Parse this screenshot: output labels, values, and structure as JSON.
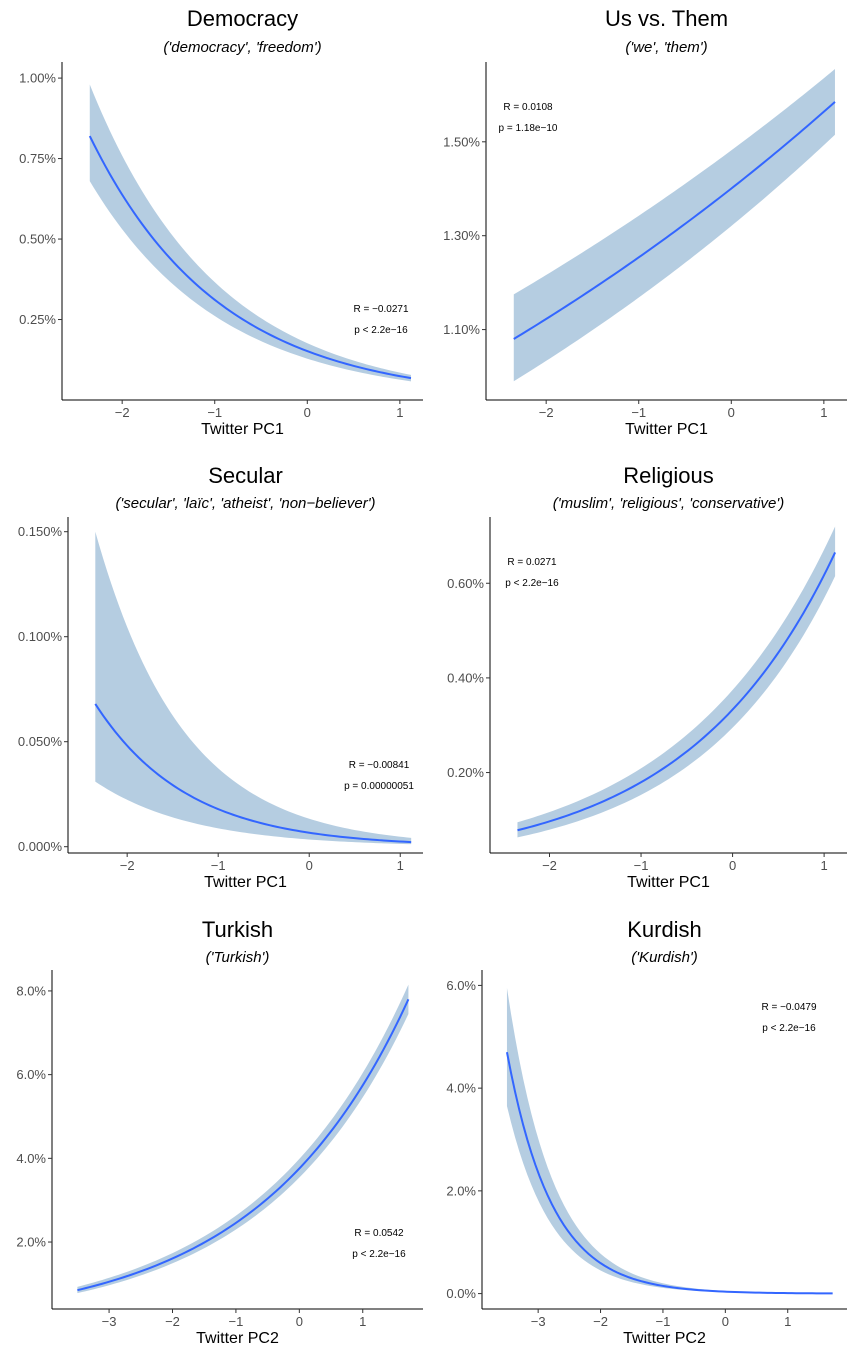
{
  "colors": {
    "line": "#3366ff",
    "ribbon": "#b5cde1",
    "axis": "#000000",
    "tick_text": "#4d4d4d"
  },
  "chart_data": [
    {
      "type": "line",
      "title": "Democracy",
      "subtitle": "('democracy', 'freedom')",
      "xlabel": "Twitter PC1",
      "ylabel": "",
      "xlim": [
        -2.65,
        1.25
      ],
      "ylim": [
        0.0,
        1.05
      ],
      "x_ticks": [
        -2,
        -1,
        0,
        1
      ],
      "x_tick_labels": [
        "−2",
        "−1",
        "0",
        "1"
      ],
      "y_ticks": [
        0.25,
        0.5,
        0.75,
        1.0
      ],
      "y_tick_labels": [
        "0.25%",
        "0.50%",
        "0.75%",
        "1.00%"
      ],
      "curve": {
        "form": "exp",
        "x_range": [
          -2.35,
          1.12
        ],
        "y_start": 0.82,
        "y_end": 0.068,
        "lo_start": 0.68,
        "lo_end": 0.058,
        "hi_start": 0.98,
        "hi_end": 0.078
      },
      "annotation": {
        "r": "R = −0.0271",
        "p": "p < 2.2e−16",
        "position": "right-middle"
      },
      "grid": false
    },
    {
      "type": "line",
      "title": "Us vs. Them",
      "subtitle": "('we', 'them')",
      "xlabel": "Twitter PC1",
      "ylabel": "",
      "xlim": [
        -2.65,
        1.25
      ],
      "ylim": [
        0.95,
        1.67
      ],
      "x_ticks": [
        -2,
        -1,
        0,
        1
      ],
      "x_tick_labels": [
        "−2",
        "−1",
        "0",
        "1"
      ],
      "y_ticks": [
        1.1,
        1.3,
        1.5
      ],
      "y_tick_labels": [
        "1.10%",
        "1.30%",
        "1.50%"
      ],
      "curve": {
        "form": "exp",
        "x_range": [
          -2.35,
          1.12
        ],
        "y_start": 1.08,
        "y_end": 1.585,
        "lo_start": 0.99,
        "lo_end": 1.515,
        "hi_start": 1.175,
        "hi_end": 1.655
      },
      "annotation": {
        "r": "R = 0.0108",
        "p": "p = 1.18e−10",
        "position": "top-left"
      },
      "grid": false
    },
    {
      "type": "line",
      "title": "Secular",
      "subtitle": "('secular', 'laïc', 'atheist', 'non−believer')",
      "xlabel": "Twitter PC1",
      "ylabel": "",
      "xlim": [
        -2.65,
        1.25
      ],
      "ylim": [
        -0.003,
        0.157
      ],
      "x_ticks": [
        -2,
        -1,
        0,
        1
      ],
      "x_tick_labels": [
        "−2",
        "−1",
        "0",
        "1"
      ],
      "y_ticks": [
        0.0,
        0.05,
        0.1,
        0.15
      ],
      "y_tick_labels": [
        "0.000%",
        "0.050%",
        "0.100%",
        "0.150%"
      ],
      "curve": {
        "form": "exp",
        "x_range": [
          -2.35,
          1.12
        ],
        "y_start": 0.068,
        "y_end": 0.0022,
        "lo_start": 0.031,
        "lo_end": 0.0012,
        "hi_start": 0.15,
        "hi_end": 0.0042
      },
      "annotation": {
        "r": "R = −0.00841",
        "p": "p = 0.00000051",
        "position": "right-middle"
      },
      "grid": false
    },
    {
      "type": "line",
      "title": "Religious",
      "subtitle": "('muslim', 'religious', 'conservative')",
      "xlabel": "Twitter PC1",
      "ylabel": "",
      "xlim": [
        -2.65,
        1.25
      ],
      "ylim": [
        0.03,
        0.74
      ],
      "x_ticks": [
        -2,
        -1,
        0,
        1
      ],
      "x_tick_labels": [
        "−2",
        "−1",
        "0",
        "1"
      ],
      "y_ticks": [
        0.2,
        0.4,
        0.6
      ],
      "y_tick_labels": [
        "0.20%",
        "0.40%",
        "0.60%"
      ],
      "curve": {
        "form": "exp",
        "x_range": [
          -2.35,
          1.12
        ],
        "y_start": 0.078,
        "y_end": 0.665,
        "lo_start": 0.063,
        "lo_end": 0.615,
        "hi_start": 0.095,
        "hi_end": 0.72
      },
      "annotation": {
        "r": "R = 0.0271",
        "p": "p < 2.2e−16",
        "position": "top-left"
      },
      "grid": false
    },
    {
      "type": "line",
      "title": "Turkish",
      "subtitle": "('Turkish')",
      "xlabel": "Twitter PC2",
      "ylabel": "",
      "xlim": [
        -3.9,
        1.95
      ],
      "ylim": [
        0.4,
        8.5
      ],
      "x_ticks": [
        -3,
        -2,
        -1,
        0,
        1
      ],
      "x_tick_labels": [
        "−3",
        "−2",
        "−1",
        "0",
        "1"
      ],
      "y_ticks": [
        2,
        4,
        6,
        8
      ],
      "y_tick_labels": [
        "2.0%",
        "4.0%",
        "6.0%",
        "8.0%"
      ],
      "curve": {
        "form": "exp",
        "x_range": [
          -3.5,
          1.72
        ],
        "y_start": 0.85,
        "y_end": 7.8,
        "lo_start": 0.78,
        "lo_end": 7.45,
        "hi_start": 0.93,
        "hi_end": 8.15
      },
      "annotation": {
        "r": "R = 0.0542",
        "p": "p < 2.2e−16",
        "position": "right-middle"
      },
      "grid": false
    },
    {
      "type": "line",
      "title": "Kurdish",
      "subtitle": "('Kurdish')",
      "xlabel": "Twitter PC2",
      "ylabel": "",
      "xlim": [
        -3.9,
        1.95
      ],
      "ylim": [
        -0.3,
        6.3
      ],
      "x_ticks": [
        -3,
        -2,
        -1,
        0,
        1
      ],
      "x_tick_labels": [
        "−3",
        "−2",
        "−1",
        "0",
        "1"
      ],
      "y_ticks": [
        0,
        2,
        4,
        6
      ],
      "y_tick_labels": [
        "0.0%",
        "2.0%",
        "4.0%",
        "6.0%"
      ],
      "curve": {
        "form": "exp",
        "x_range": [
          -3.5,
          1.72
        ],
        "y_start": 4.7,
        "y_end": 0.0035,
        "lo_start": 3.65,
        "lo_end": 0.0025,
        "hi_start": 5.95,
        "hi_end": 0.005
      },
      "annotation": {
        "r": "R = −0.0479",
        "p": "p < 2.2e−16",
        "position": "top-right"
      },
      "grid": false
    }
  ]
}
